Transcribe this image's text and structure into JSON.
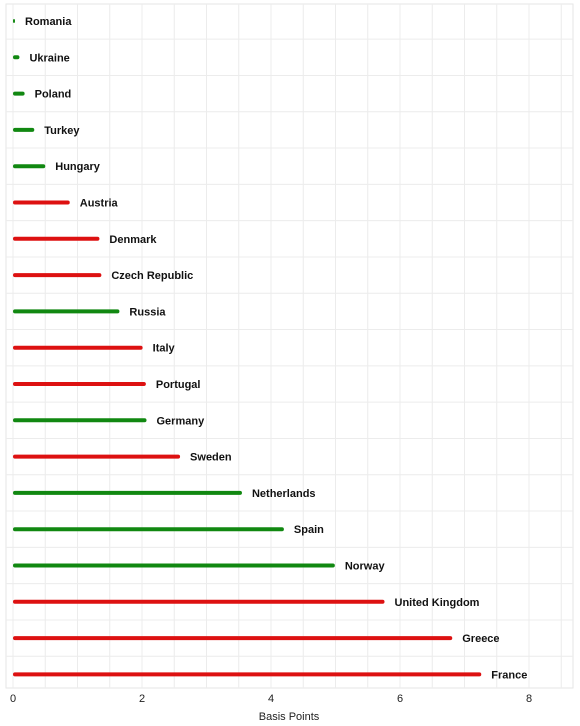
{
  "chart_data": {
    "type": "bar",
    "orientation": "horizontal",
    "xlabel": "Basis Points",
    "xlim": [
      0,
      8.7
    ],
    "xticks": [
      0,
      2,
      4,
      6,
      8
    ],
    "grid": true,
    "colors": {
      "positive": "#dd1111",
      "negative": "#118811"
    },
    "bars": [
      {
        "label": "Romania",
        "value": 0.02,
        "color": "#118811"
      },
      {
        "label": "Ukraine",
        "value": 0.1,
        "color": "#118811"
      },
      {
        "label": "Poland",
        "value": 0.18,
        "color": "#118811"
      },
      {
        "label": "Turkey",
        "value": 0.33,
        "color": "#118811"
      },
      {
        "label": "Hungary",
        "value": 0.5,
        "color": "#118811"
      },
      {
        "label": "Austria",
        "value": 0.88,
        "color": "#dd1111"
      },
      {
        "label": "Denmark",
        "value": 1.34,
        "color": "#dd1111"
      },
      {
        "label": "Czech Republic",
        "value": 1.37,
        "color": "#dd1111"
      },
      {
        "label": "Russia",
        "value": 1.65,
        "color": "#118811"
      },
      {
        "label": "Italy",
        "value": 2.01,
        "color": "#dd1111"
      },
      {
        "label": "Portugal",
        "value": 2.06,
        "color": "#dd1111"
      },
      {
        "label": "Germany",
        "value": 2.07,
        "color": "#118811"
      },
      {
        "label": "Sweden",
        "value": 2.59,
        "color": "#dd1111"
      },
      {
        "label": "Netherlands",
        "value": 3.55,
        "color": "#118811"
      },
      {
        "label": "Spain",
        "value": 4.2,
        "color": "#118811"
      },
      {
        "label": "Norway",
        "value": 4.99,
        "color": "#118811"
      },
      {
        "label": "United Kingdom",
        "value": 5.76,
        "color": "#dd1111"
      },
      {
        "label": "Greece",
        "value": 6.81,
        "color": "#dd1111"
      },
      {
        "label": "France",
        "value": 7.26,
        "color": "#dd1111"
      }
    ]
  }
}
